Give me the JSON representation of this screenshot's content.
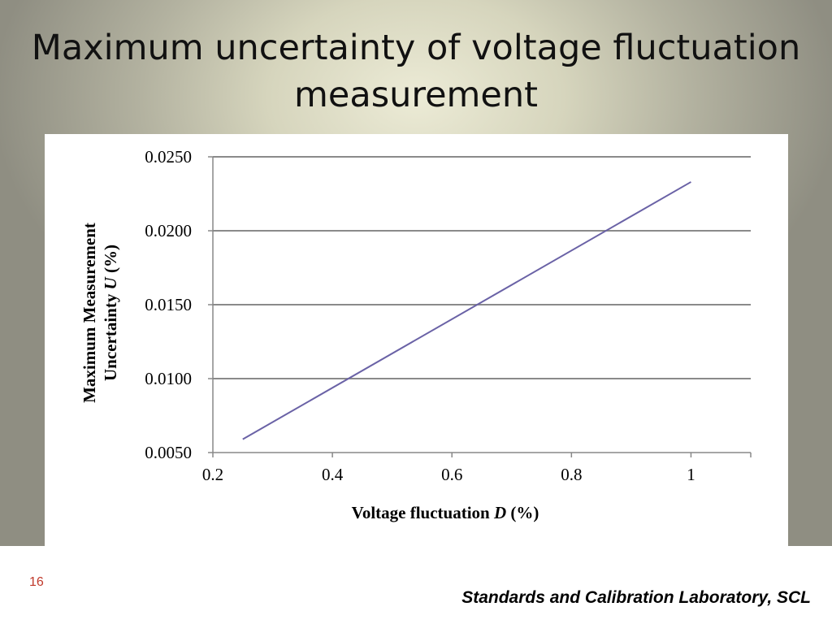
{
  "slide": {
    "title": "Maximum uncertainty of voltage fluctuation measurement",
    "page_number": "16",
    "footer": "Standards and Calibration Laboratory, SCL"
  },
  "chart_data": {
    "type": "line",
    "xlabel": {
      "text": "Voltage fluctuation ",
      "var": "D",
      "unit": " (%)"
    },
    "ylabel": {
      "line1": "Maximum Measurement",
      "line2_text": "Uncertainty ",
      "line2_var": "U",
      "line2_unit": " (%)"
    },
    "xlim": [
      0.2,
      1.1
    ],
    "ylim": [
      0.005,
      0.025
    ],
    "x_ticks": [
      0.2,
      0.4,
      0.6,
      0.8,
      1
    ],
    "x_tick_labels": [
      "0.2",
      "0.4",
      "0.6",
      "0.8",
      "1"
    ],
    "y_ticks": [
      0.005,
      0.01,
      0.015,
      0.02,
      0.025
    ],
    "y_tick_labels": [
      "0.0050",
      "0.0100",
      "0.0150",
      "0.0200",
      "0.0250"
    ],
    "grid": "horizontal",
    "series": [
      {
        "color": "#6a62a6",
        "x": [
          0.25,
          1.0
        ],
        "y": [
          0.0059,
          0.0233
        ]
      }
    ]
  }
}
